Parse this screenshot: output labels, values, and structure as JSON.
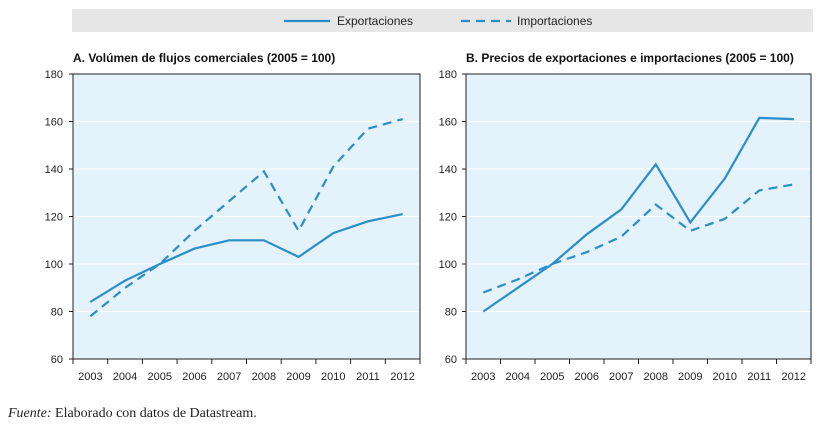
{
  "legend": {
    "series": [
      {
        "name": "Exportaciones",
        "style": "solid"
      },
      {
        "name": "Importaciones",
        "style": "dashed"
      }
    ],
    "position": "top-center"
  },
  "colors": {
    "line": "#2a8ec9",
    "plot_background": "#e3f2fb",
    "legend_background": "#e6e6e6"
  },
  "source": {
    "label": "Fuente:",
    "text": "Elaborado con datos de Datastream."
  },
  "chart_data": [
    {
      "type": "line",
      "title": "A. Volúmen de flujos comerciales (2005 = 100)",
      "xlabel": "",
      "ylabel": "",
      "categories": [
        "2003",
        "2004",
        "2005",
        "2006",
        "2007",
        "2008",
        "2009",
        "2010",
        "2011",
        "2012"
      ],
      "ylim": [
        60,
        180
      ],
      "yticks": [
        60,
        80,
        100,
        120,
        140,
        160,
        180
      ],
      "grid": true,
      "series": [
        {
          "name": "Exportaciones",
          "style": "solid",
          "values": [
            84,
            93,
            100,
            106.5,
            110,
            110,
            103,
            113,
            118,
            121
          ]
        },
        {
          "name": "Importaciones",
          "style": "dashed",
          "values": [
            78,
            90,
            100,
            114,
            126.5,
            139,
            114,
            141,
            157,
            161
          ]
        }
      ]
    },
    {
      "type": "line",
      "title": "B. Precios de exportaciones e importaciones (2005 = 100)",
      "xlabel": "",
      "ylabel": "",
      "categories": [
        "2003",
        "2004",
        "2005",
        "2006",
        "2007",
        "2008",
        "2009",
        "2010",
        "2011",
        "2012"
      ],
      "ylim": [
        60,
        180
      ],
      "yticks": [
        60,
        80,
        100,
        120,
        140,
        160,
        180
      ],
      "grid": true,
      "series": [
        {
          "name": "Exportaciones",
          "style": "solid",
          "values": [
            80,
            90,
            100,
            112.5,
            123,
            142,
            117.5,
            136,
            161.5,
            161
          ]
        },
        {
          "name": "Importaciones",
          "style": "dashed",
          "values": [
            88,
            93.5,
            100,
            105,
            111.5,
            125,
            114,
            119,
            131,
            133.5
          ]
        }
      ]
    }
  ]
}
